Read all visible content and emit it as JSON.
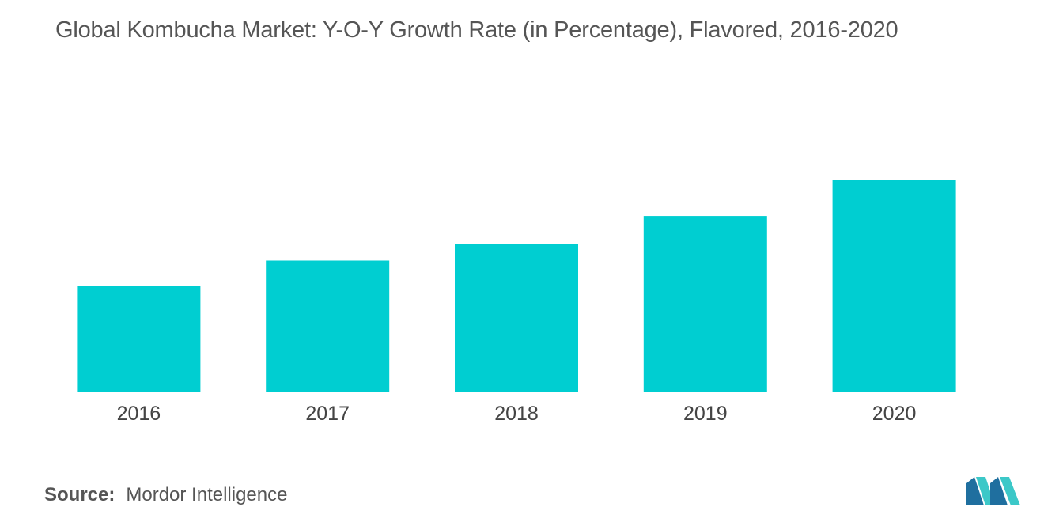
{
  "chart_data": {
    "type": "bar",
    "title": "Global Kombucha Market: Y-O-Y Growth Rate (in Percentage), Flavored, 2016-2020",
    "categories": [
      "2016",
      "2017",
      "2018",
      "2019",
      "2020"
    ],
    "values": [
      5.0,
      6.2,
      7.0,
      8.3,
      10.0
    ],
    "xlabel": "",
    "ylabel": "",
    "ylim": [
      0,
      14
    ],
    "grid": false,
    "legend": "none",
    "bar_color": "#00CED1"
  },
  "footer": {
    "source_label": "Source:",
    "source_value": "Mordor Intelligence"
  },
  "logo": {
    "icon": "mordor-intelligence-logo-icon",
    "color_dark": "#1F6F9F",
    "color_light": "#3CC8C8"
  }
}
